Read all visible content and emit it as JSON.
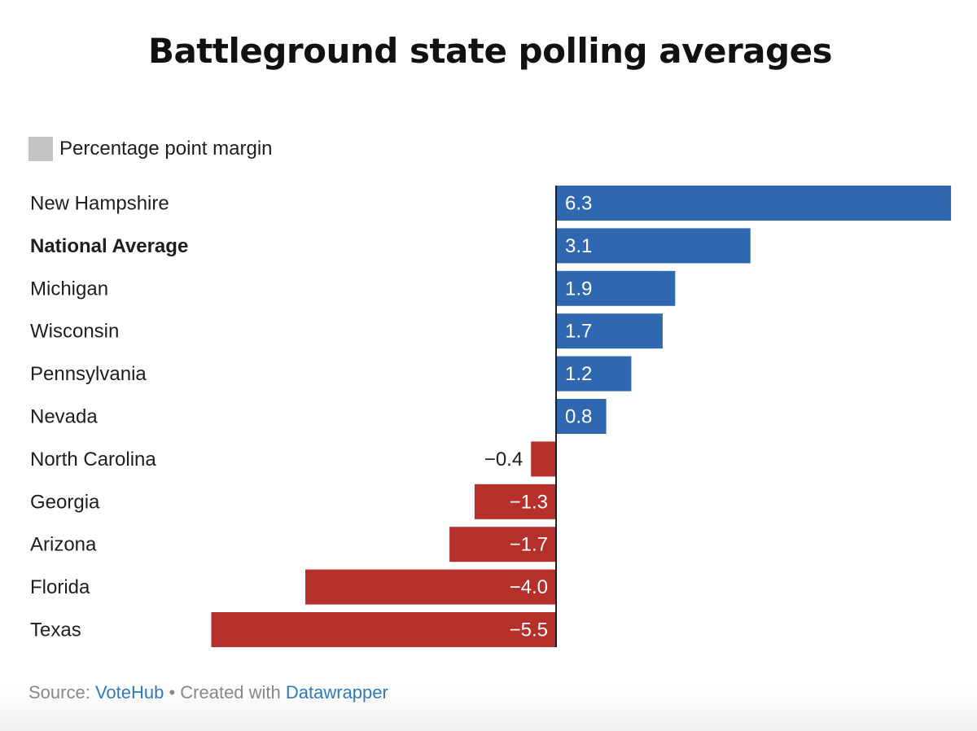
{
  "title": "Battleground state polling averages",
  "legend": {
    "label": "Percentage point margin",
    "color": "#c4c4c4"
  },
  "footer": {
    "source_prefix": "Source: ",
    "source_name": "VoteHub",
    "separator": " • Created with ",
    "tool_name": "Datawrapper"
  },
  "colors": {
    "positive": "#2f68b0",
    "negative": "#b5302b",
    "axis": "#1e1e1e",
    "link": "#2f7ab8"
  },
  "chart_data": {
    "type": "bar",
    "orientation": "horizontal",
    "categories": [
      "New Hampshire",
      "National Average",
      "Michigan",
      "Wisconsin",
      "Pennsylvania",
      "Nevada",
      "North Carolina",
      "Georgia",
      "Arizona",
      "Florida",
      "Texas"
    ],
    "values": [
      6.3,
      3.1,
      1.9,
      1.7,
      1.2,
      0.8,
      -0.4,
      -1.3,
      -1.7,
      -4.0,
      -5.5
    ],
    "value_labels": [
      "6.3",
      "3.1",
      "1.9",
      "1.7",
      "1.2",
      "0.8",
      "−0.4",
      "−1.3",
      "−1.7",
      "−4.0",
      "−5.5"
    ],
    "bold_categories": [
      "National Average"
    ],
    "xlim": [
      -5.5,
      6.3
    ],
    "series_name": "Percentage point margin",
    "grid": false
  }
}
